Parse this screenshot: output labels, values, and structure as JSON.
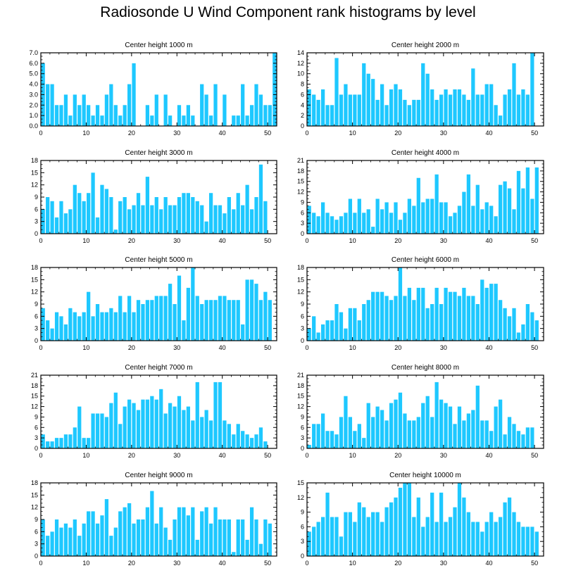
{
  "title": "Radiosonde U Wind Component rank histograms by level",
  "bar_color": "#1ec8ff",
  "axis_color": "#000000",
  "chart_data": [
    {
      "type": "bar",
      "title": "Center height 1000 m",
      "x_start": 0,
      "ylim": [
        0,
        7
      ],
      "yticks": [
        0,
        1,
        2,
        3,
        4,
        5,
        6,
        7
      ],
      "ytick_labels": [
        "0.0",
        "1.0",
        "2.0",
        "3.0",
        "4.0",
        "5.0",
        "6.0",
        "7.0"
      ],
      "xticks": [
        0,
        10,
        20,
        30,
        40,
        50
      ],
      "values": [
        6,
        4,
        4,
        2,
        2,
        3,
        1,
        3,
        2,
        3,
        2,
        1,
        2,
        1,
        3,
        4,
        2,
        1,
        2,
        4,
        6,
        0,
        0,
        2,
        1,
        3,
        0,
        3,
        1,
        0,
        2,
        1,
        2,
        1,
        0,
        4,
        3,
        1,
        4,
        0,
        3,
        0,
        1,
        1,
        4,
        1,
        2,
        4,
        3,
        2,
        2,
        7
      ]
    },
    {
      "type": "bar",
      "title": "Center height 2000 m",
      "x_start": 0,
      "ylim": [
        0,
        14
      ],
      "yticks": [
        0,
        2,
        4,
        6,
        8,
        10,
        12,
        14
      ],
      "ytick_labels": [
        "0",
        "2",
        "4",
        "6",
        "8",
        "10",
        "12",
        "14"
      ],
      "xticks": [
        0,
        10,
        20,
        30,
        40,
        50
      ],
      "values": [
        7,
        6,
        5,
        7,
        4,
        4,
        13,
        6,
        8,
        6,
        6,
        6,
        12,
        10,
        9,
        5,
        8,
        4,
        7,
        8,
        7,
        5,
        4,
        5,
        5,
        12,
        10,
        7,
        5,
        6,
        7,
        6,
        7,
        7,
        6,
        5,
        11,
        6,
        6,
        8,
        8,
        4,
        2,
        6,
        7,
        12,
        6,
        7,
        6,
        14
      ]
    },
    {
      "type": "bar",
      "title": "Center height 3000 m",
      "x_start": 0,
      "ylim": [
        0,
        18
      ],
      "yticks": [
        0,
        3,
        6,
        9,
        12,
        15,
        18
      ],
      "ytick_labels": [
        "0",
        "3",
        "6",
        "9",
        "12",
        "15",
        "18"
      ],
      "xticks": [
        0,
        10,
        20,
        30,
        40,
        50
      ],
      "values": [
        6,
        9,
        8,
        4,
        8,
        5,
        6,
        12,
        10,
        8,
        10,
        15,
        4,
        12,
        11,
        9,
        1,
        8,
        9,
        6,
        7,
        10,
        7,
        14,
        7,
        9,
        6,
        9,
        7,
        7,
        9,
        10,
        10,
        9,
        8,
        7,
        3,
        10,
        7,
        7,
        5,
        9,
        6,
        10,
        7,
        12,
        6,
        9,
        17,
        8
      ]
    },
    {
      "type": "bar",
      "title": "Center height 4000 m",
      "x_start": 0,
      "ylim": [
        0,
        21
      ],
      "yticks": [
        0,
        3,
        6,
        9,
        12,
        15,
        18,
        21
      ],
      "ytick_labels": [
        "0",
        "3",
        "6",
        "9",
        "12",
        "15",
        "18",
        "21"
      ],
      "xticks": [
        0,
        10,
        20,
        30,
        40,
        50
      ],
      "values": [
        8,
        6,
        5,
        9,
        6,
        5,
        4,
        5,
        6,
        10,
        6,
        10,
        6,
        7,
        2,
        10,
        7,
        9,
        6,
        9,
        4,
        6,
        10,
        8,
        16,
        9,
        10,
        10,
        17,
        9,
        9,
        5,
        6,
        8,
        12,
        17,
        8,
        14,
        7,
        9,
        8,
        5,
        14,
        15,
        13,
        7,
        18,
        13,
        19,
        10,
        19
      ]
    },
    {
      "type": "bar",
      "title": "Center height 5000 m",
      "x_start": 0,
      "ylim": [
        0,
        18
      ],
      "yticks": [
        0,
        3,
        6,
        9,
        12,
        15,
        18
      ],
      "ytick_labels": [
        "0",
        "3",
        "6",
        "9",
        "12",
        "15",
        "18"
      ],
      "xticks": [
        0,
        10,
        20,
        30,
        40,
        50
      ],
      "values": [
        8,
        5,
        3,
        7,
        6,
        4,
        8,
        7,
        6,
        7,
        12,
        6,
        9,
        7,
        7,
        8,
        7,
        11,
        7,
        11,
        7,
        10,
        9,
        10,
        10,
        11,
        11,
        11,
        14,
        9,
        16,
        5,
        13,
        18,
        11,
        9,
        10,
        10,
        10,
        11,
        11,
        10,
        10,
        10,
        4,
        15,
        15,
        14,
        10,
        12,
        10
      ]
    },
    {
      "type": "bar",
      "title": "Center height 6000 m",
      "x_start": 0,
      "ylim": [
        0,
        18
      ],
      "yticks": [
        0,
        3,
        6,
        9,
        12,
        15,
        18
      ],
      "ytick_labels": [
        "0",
        "3",
        "6",
        "9",
        "12",
        "15",
        "18"
      ],
      "xticks": [
        0,
        10,
        20,
        30,
        40,
        50
      ],
      "values": [
        3,
        6,
        2,
        4,
        5,
        5,
        9,
        7,
        3,
        8,
        8,
        5,
        9,
        10,
        12,
        12,
        12,
        11,
        10,
        11,
        18,
        11,
        13,
        10,
        13,
        13,
        8,
        9,
        13,
        9,
        13,
        12,
        12,
        11,
        13,
        11,
        11,
        9,
        15,
        13,
        14,
        14,
        10,
        8,
        6,
        8,
        2,
        4,
        9,
        7,
        5
      ]
    },
    {
      "type": "bar",
      "title": "Center height 7000 m",
      "x_start": 0,
      "ylim": [
        0,
        21
      ],
      "yticks": [
        0,
        3,
        6,
        9,
        12,
        15,
        18,
        21
      ],
      "ytick_labels": [
        "0",
        "3",
        "6",
        "9",
        "12",
        "15",
        "18",
        "21"
      ],
      "xticks": [
        0,
        10,
        20,
        30,
        40,
        50
      ],
      "values": [
        4,
        2,
        2,
        3,
        3,
        4,
        4,
        6,
        12,
        3,
        3,
        10,
        10,
        10,
        9,
        13,
        16,
        7,
        12,
        14,
        13,
        11,
        14,
        14,
        15,
        14,
        17,
        10,
        13,
        12,
        15,
        11,
        12,
        8,
        19,
        9,
        11,
        8,
        19,
        19,
        8,
        7,
        4,
        7,
        5,
        4,
        3,
        4,
        6,
        2
      ]
    },
    {
      "type": "bar",
      "title": "Center height 8000 m",
      "x_start": 0,
      "ylim": [
        0,
        21
      ],
      "yticks": [
        0,
        3,
        6,
        9,
        12,
        15,
        18,
        21
      ],
      "ytick_labels": [
        "0",
        "3",
        "6",
        "9",
        "12",
        "15",
        "18",
        "21"
      ],
      "xticks": [
        0,
        10,
        20,
        30,
        40,
        50
      ],
      "values": [
        1,
        7,
        7,
        10,
        5,
        5,
        4,
        9,
        15,
        9,
        5,
        7,
        3,
        13,
        9,
        12,
        11,
        8,
        13,
        14,
        16,
        10,
        8,
        8,
        9,
        13,
        15,
        9,
        19,
        14,
        13,
        12,
        7,
        12,
        8,
        10,
        11,
        18,
        8,
        8,
        5,
        12,
        14,
        4,
        9,
        7,
        5,
        4,
        6,
        6
      ]
    },
    {
      "type": "bar",
      "title": "Center height 9000 m",
      "x_start": 0,
      "ylim": [
        0,
        18
      ],
      "yticks": [
        0,
        3,
        6,
        9,
        12,
        15,
        18
      ],
      "ytick_labels": [
        "0",
        "3",
        "6",
        "9",
        "12",
        "15",
        "18"
      ],
      "xticks": [
        0,
        10,
        20,
        30,
        40,
        50
      ],
      "values": [
        9,
        5,
        6,
        9,
        7,
        8,
        7,
        9,
        5,
        8,
        11,
        11,
        8,
        10,
        14,
        5,
        7,
        11,
        12,
        13,
        8,
        9,
        9,
        12,
        16,
        8,
        12,
        7,
        4,
        9,
        12,
        12,
        10,
        12,
        4,
        11,
        12,
        8,
        12,
        9,
        9,
        9,
        1,
        9,
        9,
        4,
        12,
        9,
        3,
        9,
        8
      ]
    },
    {
      "type": "bar",
      "title": "Center height 10000 m",
      "x_start": 0,
      "ylim": [
        0,
        15
      ],
      "yticks": [
        0,
        3,
        6,
        9,
        12,
        15
      ],
      "ytick_labels": [
        "0",
        "3",
        "6",
        "9",
        "12",
        "15"
      ],
      "xticks": [
        0,
        10,
        20,
        30,
        40,
        50
      ],
      "values": [
        5,
        6,
        7,
        8,
        13,
        8,
        8,
        4,
        9,
        9,
        7,
        11,
        10,
        8,
        9,
        9,
        7,
        10,
        11,
        12,
        14,
        15,
        15,
        8,
        12,
        6,
        8,
        13,
        7,
        13,
        7,
        8,
        10,
        15,
        12,
        9,
        7,
        7,
        5,
        7,
        9,
        7,
        8,
        11,
        12,
        9,
        7,
        6,
        6,
        6,
        5
      ]
    }
  ]
}
